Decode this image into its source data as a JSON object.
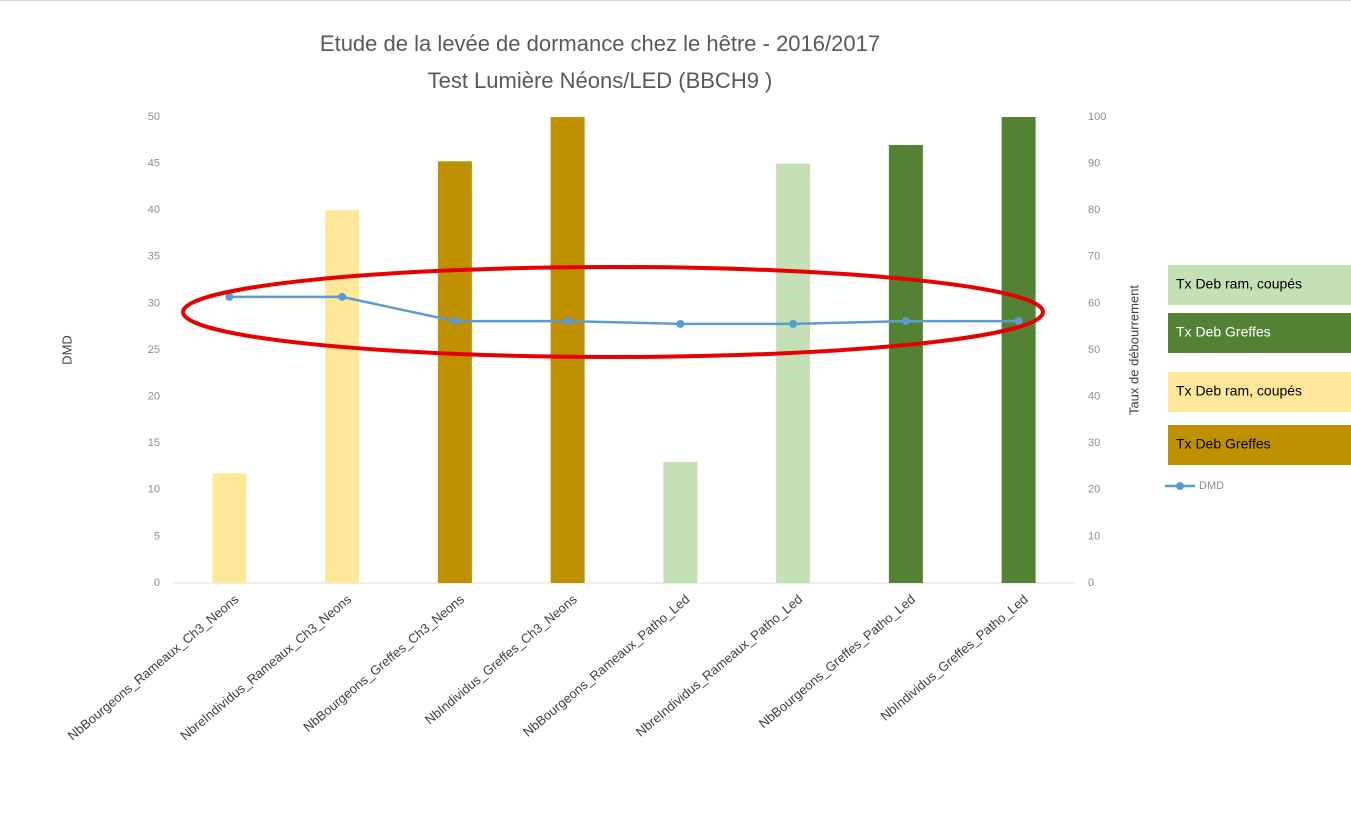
{
  "chart_data": {
    "type": "bar",
    "title": "Etude de la levée de dormance chez le hêtre - 2016/2017",
    "subtitle": "Test Lumière Néons/LED (BBCH9 )",
    "y_label": "DMD",
    "y2_label": "Taux de débourrement",
    "categories": [
      "NbBourgeons_Rameaux_Ch3_Neons",
      "NbreIndividus_Rameaux_Ch3_Neons",
      "NbBourgeons_Greffes_Ch3_Neons",
      "NbIndividus_Greffes_Ch3_Neons",
      "NbBourgeons_Rameaux_Patho_Led",
      "NbreIndividus_Rameaux_Patho_Led",
      "NbBourgeons_Greffes_Patho_Led",
      "NbIndividus_Greffes_Patho_Led"
    ],
    "series": [
      {
        "name": "Tx Deb ram, coupés",
        "color": "#c5e0b4",
        "axis": "y2",
        "type": "bar",
        "values": [
          null,
          null,
          null,
          null,
          26,
          90,
          null,
          null
        ]
      },
      {
        "name": "Tx Deb Greffes",
        "color": "#548235",
        "axis": "y2",
        "type": "bar",
        "values": [
          null,
          null,
          null,
          null,
          null,
          null,
          94,
          100
        ]
      },
      {
        "name": "Tx Deb ram, coupés",
        "color": "#ffe699",
        "axis": "y2",
        "type": "bar",
        "values": [
          23.5,
          80,
          null,
          null,
          null,
          null,
          null,
          null
        ]
      },
      {
        "name": "Tx Deb Greffes",
        "color": "#bf9000",
        "axis": "y2",
        "type": "bar",
        "values": [
          null,
          null,
          90.5,
          100,
          null,
          null,
          null,
          null
        ]
      },
      {
        "name": "DMD",
        "color": "#5b9bd5",
        "axis": "y",
        "type": "line",
        "values": [
          30.7,
          30.7,
          28.1,
          28.1,
          27.8,
          27.8,
          28.1,
          28.1
        ]
      }
    ],
    "ylim": [
      0,
      50
    ],
    "yticks": [
      0,
      5,
      10,
      15,
      20,
      25,
      30,
      35,
      40,
      45,
      50
    ],
    "y2lim": [
      0,
      100
    ],
    "y2ticks": [
      0,
      10,
      20,
      30,
      40,
      50,
      60,
      70,
      80,
      90,
      100
    ],
    "grid": false,
    "legend": "right"
  }
}
